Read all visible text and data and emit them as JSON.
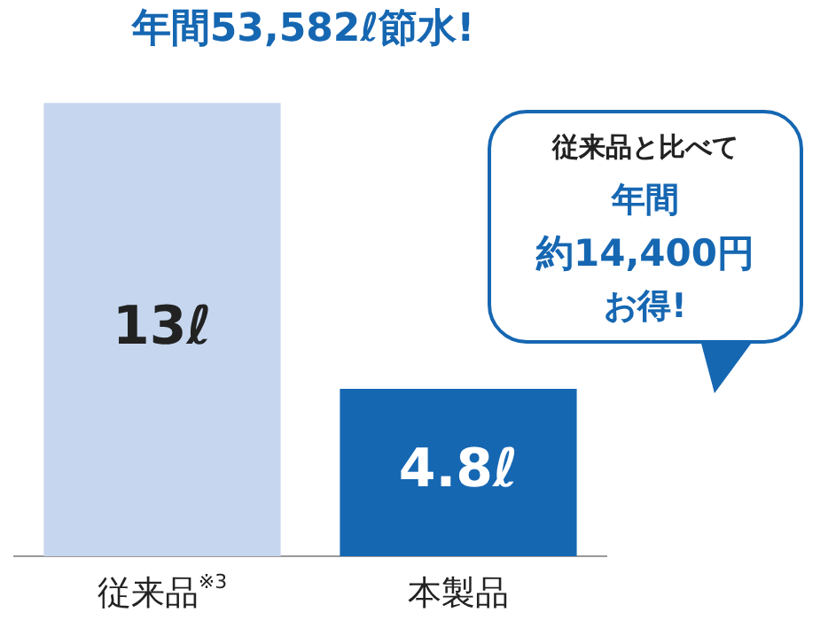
{
  "chart_data": {
    "type": "bar",
    "title": "年間53,582ℓ節水!",
    "categories": [
      "従来品$^{※3}$",
      "本製品"
    ],
    "values": [
      13,
      4.8
    ],
    "colors": [
      "#c6d6ee",
      "#1667b2"
    ],
    "value_labels": [
      "13ℓ",
      "4.8ℓ"
    ],
    "relative": false,
    "grid": false,
    "legend": false,
    "annotations": [
      "従来品と比べて",
      "年間",
      "約14,400円",
      "お得!"
    ]
  }
}
